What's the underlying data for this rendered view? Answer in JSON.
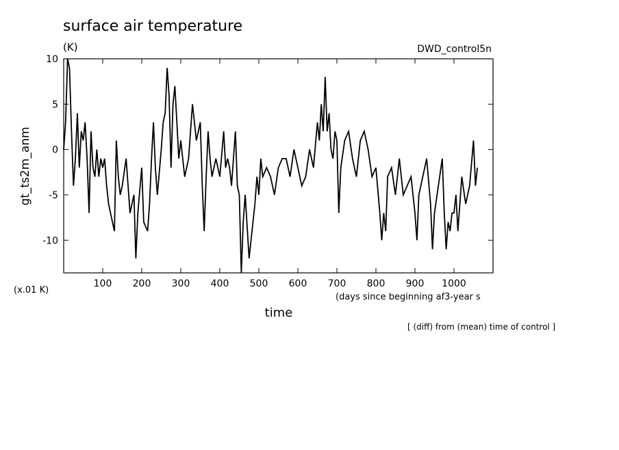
{
  "chart_data": {
    "type": "line",
    "title": "surface air temperature",
    "units": "(K)",
    "run_label": "DWD_control5n",
    "y_label": "gt_ts2m_anm",
    "scale_note": "(x.01 K)",
    "x_label": "time",
    "x_units": "(days since beginning af3-year s",
    "footnote": "[ (diff) from (mean) time of control ]",
    "xlim": [
      0,
      1100
    ],
    "ylim": [
      -13.6,
      10
    ],
    "xticks": [
      100,
      200,
      300,
      400,
      500,
      600,
      700,
      800,
      900,
      1000
    ],
    "yticks": [
      -10,
      -5,
      0,
      5,
      10
    ],
    "series": [
      {
        "color": "#000000",
        "x": [
          0,
          5,
          10,
          15,
          20,
          25,
          30,
          35,
          40,
          45,
          50,
          55,
          60,
          65,
          70,
          75,
          80,
          85,
          90,
          95,
          100,
          105,
          110,
          115,
          120,
          130,
          135,
          140,
          145,
          150,
          160,
          170,
          180,
          185,
          190,
          200,
          205,
          215,
          220,
          225,
          230,
          235,
          240,
          250,
          255,
          260,
          265,
          270,
          275,
          280,
          285,
          290,
          295,
          300,
          310,
          320,
          330,
          340,
          350,
          355,
          360,
          365,
          370,
          375,
          380,
          390,
          400,
          410,
          415,
          420,
          425,
          430,
          440,
          445,
          450,
          455,
          460,
          465,
          475,
          480,
          490,
          495,
          500,
          505,
          510,
          520,
          530,
          540,
          550,
          560,
          570,
          580,
          590,
          600,
          610,
          620,
          630,
          640,
          650,
          655,
          660,
          665,
          670,
          675,
          680,
          685,
          690,
          695,
          700,
          705,
          710,
          720,
          730,
          740,
          750,
          760,
          770,
          780,
          790,
          800,
          810,
          815,
          820,
          825,
          830,
          840,
          850,
          860,
          870,
          880,
          890,
          900,
          905,
          910,
          920,
          930,
          940,
          945,
          950,
          960,
          970,
          975,
          980,
          985,
          990,
          995,
          1000,
          1005,
          1010,
          1020,
          1030,
          1040,
          1050,
          1055,
          1060
        ],
        "values": [
          0,
          3,
          10,
          9,
          2,
          -4,
          -1,
          4,
          -2,
          2,
          1,
          3,
          -1,
          -7,
          2,
          -2,
          -3,
          0,
          -3,
          -1,
          -2,
          -1,
          -4,
          -6,
          -7,
          -9,
          1,
          -3,
          -5,
          -4,
          -1,
          -7,
          -5,
          -12,
          -7,
          -2,
          -8,
          -9,
          -6,
          -1,
          3,
          -2,
          -5,
          0,
          3,
          4,
          9,
          6,
          -2,
          5,
          7,
          3,
          -1,
          1,
          -3,
          -1,
          5,
          1,
          3,
          -4,
          -9,
          -3,
          2,
          -1,
          -3,
          -1,
          -3,
          2,
          -2,
          -1,
          -2,
          -4,
          2,
          -4,
          -5,
          -13.6,
          -8,
          -5,
          -12,
          -10,
          -6,
          -3,
          -5,
          -1,
          -3,
          -2,
          -3,
          -5,
          -2,
          -1,
          -1,
          -3,
          0,
          -2,
          -4,
          -3,
          0,
          -2,
          3,
          1,
          5,
          2,
          8,
          2,
          4,
          0,
          -1,
          2,
          1,
          -7,
          -2,
          1,
          2,
          -1,
          -3,
          1,
          2,
          0,
          -3,
          -2,
          -7,
          -10,
          -7,
          -9,
          -3,
          -2,
          -5,
          -1,
          -5,
          -4,
          -3,
          -7,
          -10,
          -5,
          -3,
          -1,
          -6,
          -11,
          -7,
          -4,
          -1,
          -7,
          -11,
          -8,
          -9,
          -7,
          -7,
          -5,
          -9,
          -3,
          -6,
          -4,
          1,
          -4,
          -2
        ]
      }
    ]
  }
}
